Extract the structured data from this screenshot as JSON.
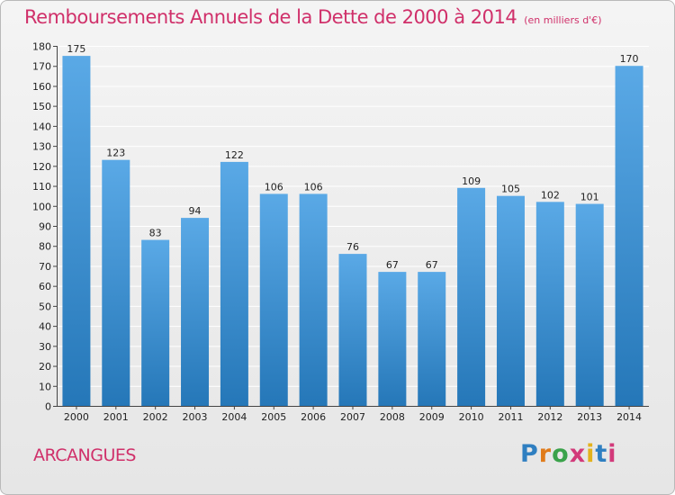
{
  "header": {
    "title": "Remboursements Annuels de la Dette de 2000 à 2014",
    "unit": "(en milliers d'€)"
  },
  "footer": {
    "commune": "ARCANGUES",
    "logo_text": "Proxiti"
  },
  "colors": {
    "title": "#d0306a",
    "bar_top": "#5aa9e6",
    "bar_bottom": "#2577b8",
    "grid": "#ffffff",
    "logo": [
      "#2f7fc1",
      "#e07b1a",
      "#3aa24a",
      "#d23a7a",
      "#e3b21c",
      "#2f7fc1",
      "#d23a7a"
    ]
  },
  "chart_data": {
    "type": "bar",
    "categories": [
      "2000",
      "2001",
      "2002",
      "2003",
      "2004",
      "2005",
      "2006",
      "2007",
      "2008",
      "2009",
      "2010",
      "2011",
      "2012",
      "2013",
      "2014"
    ],
    "values": [
      175,
      123,
      83,
      94,
      122,
      106,
      106,
      76,
      67,
      67,
      109,
      105,
      102,
      101,
      170
    ],
    "ylim": [
      0,
      180
    ],
    "ytick_step": 10,
    "grid": true,
    "data_labels": true
  }
}
